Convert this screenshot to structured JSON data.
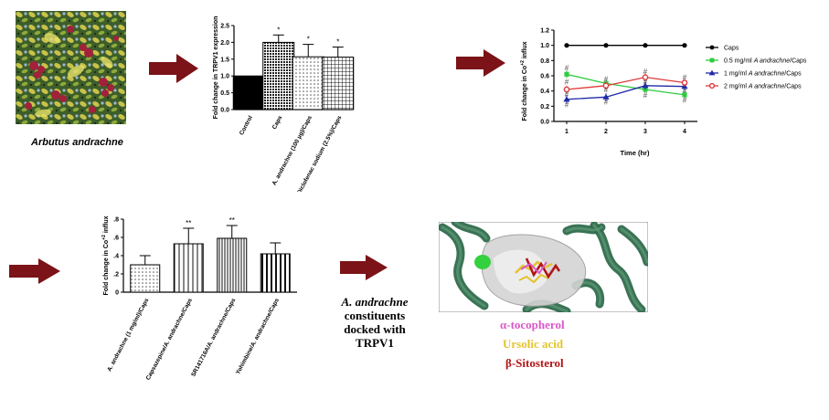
{
  "colors": {
    "arrow": "#7b1318",
    "alpha_tocopherol": "#d957c8",
    "ursolic_acid": "#e4c32a",
    "beta_sitosterol": "#b21616",
    "protein": "#2f6b4c",
    "surface": "#d9d9d9"
  },
  "plant": {
    "caption": "Arbutus andrachne",
    "icon": "plant-photo"
  },
  "docking": {
    "text_italic": "A. andrachne",
    "text_rest": "constituents\ndocked with\nTRPV1",
    "ligands": [
      {
        "name": "α-tocopherol"
      },
      {
        "name": "Ursolic acid"
      },
      {
        "name": "β-Sitosterol"
      }
    ]
  },
  "chart_data": [
    {
      "type": "bar",
      "ylabel": "Fold change in TRPV1 expression",
      "ylim": [
        0,
        2.5
      ],
      "yticks": [
        "0.0",
        "0.5",
        "1.0",
        "1.5",
        "2.0",
        "2.5"
      ],
      "categories": [
        "Control",
        "Caps",
        "A. andrachne (100 µg)/Caps",
        "Diclofenac sodium  (2.5%)/Caps"
      ],
      "values": [
        1.0,
        2.0,
        1.57,
        1.56
      ],
      "errors": [
        0,
        0.22,
        0.37,
        0.3
      ],
      "annotations": [
        "",
        "*",
        "*",
        "*"
      ],
      "patterns": [
        "solid",
        "dense-dots",
        "sparse-dots",
        "grid"
      ]
    },
    {
      "type": "line",
      "ylabel": "Fold change in Co+2 influx",
      "xlabel": "Time (hr)",
      "ylim": [
        0,
        1.2
      ],
      "yticks": [
        "0.0",
        "0.2",
        "0.4",
        "0.6",
        "0.8",
        "1.0",
        "1.2"
      ],
      "x": [
        1,
        2,
        3,
        4
      ],
      "series": [
        {
          "name": "Caps",
          "values": [
            1.0,
            1.0,
            1.0,
            1.0
          ],
          "color": "#000000",
          "marker": "circle"
        },
        {
          "name": "0.5 mg/ml A andrachne/Caps",
          "values": [
            0.62,
            0.5,
            0.42,
            0.35
          ],
          "color": "#2ecc40",
          "marker": "square"
        },
        {
          "name": "1 mg/ml A andrachne/Caps",
          "values": [
            0.29,
            0.32,
            0.47,
            0.46
          ],
          "color": "#1f2aa8",
          "marker": "triangle"
        },
        {
          "name": "2 mg/ml A andrachne/Caps",
          "values": [
            0.42,
            0.47,
            0.58,
            0.51
          ],
          "color": "#e03a3a",
          "marker": "circle-open"
        }
      ],
      "annotations": [
        "#",
        "#",
        "#",
        "#",
        "#",
        "#",
        "#",
        "#",
        "#",
        "#",
        "#",
        "#",
        "#"
      ]
    },
    {
      "type": "bar",
      "ylabel": "Fold change in Co+2 influx",
      "ylim": [
        0,
        0.8
      ],
      "yticks": [
        "0",
        ".2",
        ".4",
        ".6",
        ".8"
      ],
      "categories": [
        "A. andrachne (1 mg/ml)/Caps",
        "Capsazepine/A. andrachne/Caps",
        "SR141716A/A. andrachne/Caps",
        "Yohimbine/A. andrachne/Caps"
      ],
      "values": [
        0.3,
        0.53,
        0.59,
        0.42
      ],
      "errors": [
        0.1,
        0.17,
        0.14,
        0.12
      ],
      "annotations": [
        "",
        "**",
        "**",
        ""
      ],
      "patterns": [
        "sparse-dots",
        "vertical-lines",
        "dense-vertical",
        "vertical-bold"
      ]
    }
  ]
}
